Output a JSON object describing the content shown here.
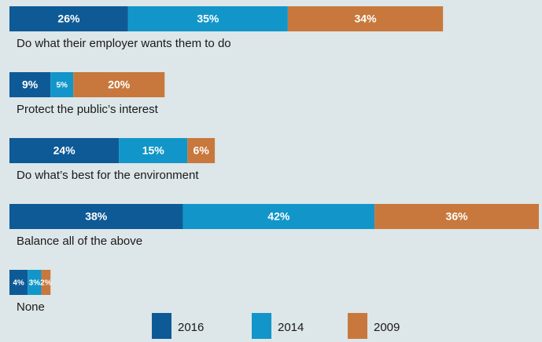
{
  "chart_data": {
    "type": "stacked-bar",
    "categories": [
      "Do what their employer wants them to do",
      "Protect the public’s interest",
      "Do what’s best for the environment",
      "Balance all of the above",
      "None"
    ],
    "series": [
      {
        "name": "2016",
        "color": "#0e5a96",
        "values": [
          26,
          9,
          24,
          38,
          4
        ],
        "value_labels": [
          "26%",
          "9%",
          "24%",
          "38%",
          "4%"
        ]
      },
      {
        "name": "2014",
        "color": "#1296c9",
        "values": [
          35,
          5,
          15,
          42,
          3
        ],
        "value_labels": [
          "35%",
          "5%",
          "15%",
          "42%",
          "3%"
        ]
      },
      {
        "name": "2009",
        "color": "#c8783c",
        "values": [
          34,
          20,
          6,
          36,
          2
        ],
        "value_labels": [
          "34%",
          "20%",
          "6%",
          "36%",
          "2%"
        ]
      }
    ]
  }
}
